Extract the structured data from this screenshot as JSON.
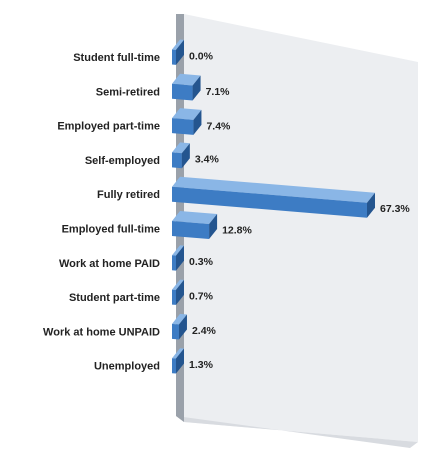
{
  "chart_data": {
    "type": "bar",
    "orientation": "horizontal",
    "style": "3d",
    "categories": [
      "Student full-time",
      "Semi-retired",
      "Employed part-time",
      "Self-employed",
      "Fully retired",
      "Employed full-time",
      "Work at home PAID",
      "Student part-time",
      "Work at home UNPAID",
      "Unemployed"
    ],
    "values": [
      0.0,
      7.1,
      7.4,
      3.4,
      67.3,
      12.8,
      0.3,
      0.7,
      2.4,
      1.3
    ],
    "value_labels": [
      "0.0%",
      "7.1%",
      "7.4%",
      "3.4%",
      "67.3%",
      "12.8%",
      "0.3%",
      "0.7%",
      "2.4%",
      "1.3%"
    ],
    "xlim": [
      0,
      70
    ],
    "grid": false,
    "legend": "none",
    "colors": {
      "bar_front": "#3d7cc4",
      "bar_top": "#8ab6e6",
      "bar_side": "#24558f",
      "wall": "#eceef1",
      "floor": "#d8dbe0",
      "axis_wall": "#9aa1aa"
    }
  }
}
